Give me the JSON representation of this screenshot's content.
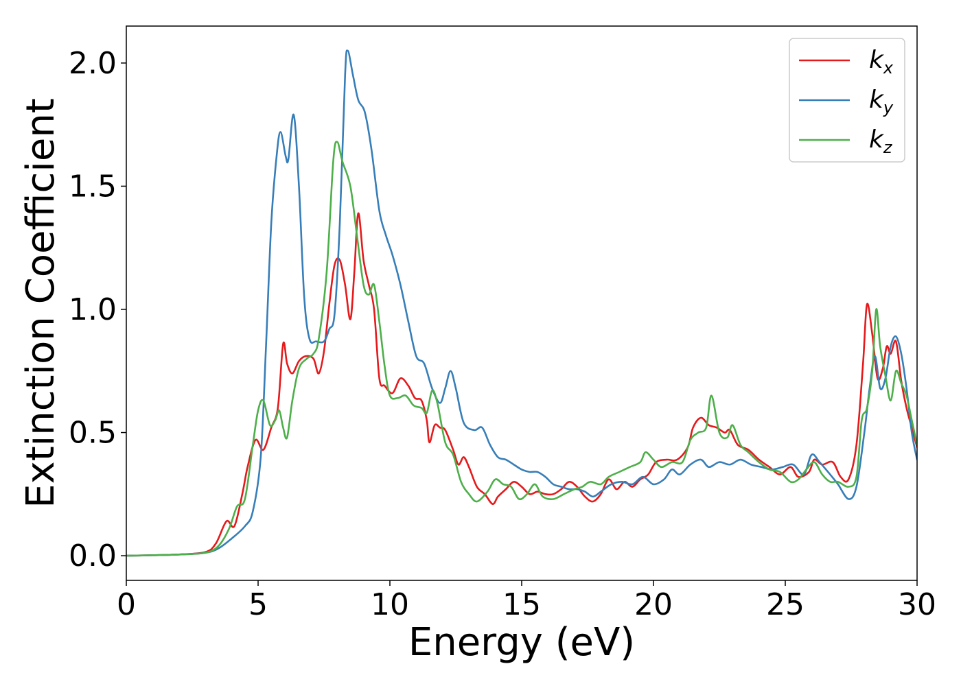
{
  "chart_data": {
    "type": "line",
    "xlabel": "Energy (eV)",
    "ylabel": "Extinction Coefficient",
    "xlim": [
      0,
      30
    ],
    "ylim": [
      -0.1,
      2.15
    ],
    "grid": false,
    "legend_position": "top-right",
    "x_ticks": [
      0,
      5,
      10,
      15,
      20,
      25,
      30
    ],
    "x_tick_labels": [
      "0",
      "5",
      "10",
      "15",
      "20",
      "25",
      "30"
    ],
    "y_ticks": [
      0.0,
      0.5,
      1.0,
      1.5,
      2.0
    ],
    "y_tick_labels": [
      "0.0",
      "0.5",
      "1.0",
      "1.5",
      "2.0"
    ],
    "series": [
      {
        "name": "k_x",
        "label_main": "k",
        "label_sub": "x",
        "color": "#e41a1c",
        "points": [
          [
            0,
            0
          ],
          [
            1,
            0.002
          ],
          [
            2,
            0.005
          ],
          [
            3,
            0.015
          ],
          [
            3.4,
            0.05
          ],
          [
            3.8,
            0.14
          ],
          [
            4.1,
            0.12
          ],
          [
            4.4,
            0.25
          ],
          [
            4.6,
            0.36
          ],
          [
            4.9,
            0.47
          ],
          [
            5.2,
            0.43
          ],
          [
            5.5,
            0.52
          ],
          [
            5.75,
            0.6
          ],
          [
            5.95,
            0.86
          ],
          [
            6.1,
            0.78
          ],
          [
            6.3,
            0.74
          ],
          [
            6.55,
            0.79
          ],
          [
            6.8,
            0.81
          ],
          [
            7.1,
            0.8
          ],
          [
            7.3,
            0.74
          ],
          [
            7.5,
            0.83
          ],
          [
            7.7,
            1.02
          ],
          [
            7.9,
            1.18
          ],
          [
            8.1,
            1.2
          ],
          [
            8.3,
            1.1
          ],
          [
            8.5,
            0.96
          ],
          [
            8.65,
            1.15
          ],
          [
            8.8,
            1.39
          ],
          [
            9.0,
            1.2
          ],
          [
            9.2,
            1.1
          ],
          [
            9.4,
            1.0
          ],
          [
            9.6,
            0.72
          ],
          [
            9.8,
            0.69
          ],
          [
            10.1,
            0.66
          ],
          [
            10.4,
            0.72
          ],
          [
            10.7,
            0.69
          ],
          [
            10.95,
            0.64
          ],
          [
            11.2,
            0.63
          ],
          [
            11.4,
            0.55
          ],
          [
            11.5,
            0.46
          ],
          [
            11.7,
            0.53
          ],
          [
            11.9,
            0.52
          ],
          [
            12.1,
            0.51
          ],
          [
            12.4,
            0.43
          ],
          [
            12.6,
            0.37
          ],
          [
            12.8,
            0.4
          ],
          [
            13.0,
            0.36
          ],
          [
            13.3,
            0.28
          ],
          [
            13.6,
            0.25
          ],
          [
            13.9,
            0.21
          ],
          [
            14.1,
            0.24
          ],
          [
            14.4,
            0.27
          ],
          [
            14.7,
            0.3
          ],
          [
            15.0,
            0.28
          ],
          [
            15.3,
            0.25
          ],
          [
            15.6,
            0.26
          ],
          [
            15.9,
            0.25
          ],
          [
            16.2,
            0.25
          ],
          [
            16.5,
            0.27
          ],
          [
            16.8,
            0.3
          ],
          [
            17.1,
            0.28
          ],
          [
            17.4,
            0.24
          ],
          [
            17.7,
            0.22
          ],
          [
            18.0,
            0.25
          ],
          [
            18.3,
            0.31
          ],
          [
            18.6,
            0.27
          ],
          [
            18.9,
            0.3
          ],
          [
            19.2,
            0.28
          ],
          [
            19.5,
            0.31
          ],
          [
            19.8,
            0.33
          ],
          [
            20.1,
            0.38
          ],
          [
            20.5,
            0.39
          ],
          [
            20.9,
            0.39
          ],
          [
            21.3,
            0.44
          ],
          [
            21.5,
            0.52
          ],
          [
            21.8,
            0.56
          ],
          [
            22.1,
            0.53
          ],
          [
            22.4,
            0.52
          ],
          [
            22.7,
            0.5
          ],
          [
            22.9,
            0.51
          ],
          [
            23.2,
            0.45
          ],
          [
            23.6,
            0.43
          ],
          [
            24.0,
            0.39
          ],
          [
            24.4,
            0.36
          ],
          [
            24.8,
            0.33
          ],
          [
            25.2,
            0.36
          ],
          [
            25.5,
            0.32
          ],
          [
            25.9,
            0.34
          ],
          [
            26.1,
            0.39
          ],
          [
            26.4,
            0.37
          ],
          [
            26.8,
            0.38
          ],
          [
            27.1,
            0.32
          ],
          [
            27.4,
            0.31
          ],
          [
            27.7,
            0.45
          ],
          [
            27.95,
            0.78
          ],
          [
            28.1,
            1.02
          ],
          [
            28.3,
            0.9
          ],
          [
            28.5,
            0.72
          ],
          [
            28.7,
            0.76
          ],
          [
            28.85,
            0.85
          ],
          [
            29.0,
            0.82
          ],
          [
            29.2,
            0.87
          ],
          [
            29.4,
            0.71
          ],
          [
            29.6,
            0.6
          ],
          [
            29.8,
            0.52
          ],
          [
            30.0,
            0.44
          ]
        ]
      },
      {
        "name": "k_y",
        "label_main": "k",
        "label_sub": "y",
        "color": "#377eb8",
        "points": [
          [
            0,
            0
          ],
          [
            1,
            0.002
          ],
          [
            2,
            0.005
          ],
          [
            3,
            0.012
          ],
          [
            3.5,
            0.03
          ],
          [
            4.0,
            0.07
          ],
          [
            4.5,
            0.12
          ],
          [
            4.8,
            0.18
          ],
          [
            5.1,
            0.4
          ],
          [
            5.3,
            0.85
          ],
          [
            5.5,
            1.35
          ],
          [
            5.7,
            1.62
          ],
          [
            5.85,
            1.72
          ],
          [
            6.05,
            1.62
          ],
          [
            6.15,
            1.61
          ],
          [
            6.35,
            1.79
          ],
          [
            6.55,
            1.5
          ],
          [
            6.75,
            1.05
          ],
          [
            6.95,
            0.88
          ],
          [
            7.2,
            0.87
          ],
          [
            7.5,
            0.87
          ],
          [
            7.7,
            0.92
          ],
          [
            7.9,
            0.98
          ],
          [
            8.1,
            1.35
          ],
          [
            8.3,
            1.95
          ],
          [
            8.4,
            2.05
          ],
          [
            8.6,
            1.95
          ],
          [
            8.8,
            1.85
          ],
          [
            9.05,
            1.8
          ],
          [
            9.3,
            1.65
          ],
          [
            9.6,
            1.4
          ],
          [
            9.85,
            1.3
          ],
          [
            10.1,
            1.22
          ],
          [
            10.4,
            1.1
          ],
          [
            10.7,
            0.95
          ],
          [
            11.0,
            0.81
          ],
          [
            11.3,
            0.78
          ],
          [
            11.6,
            0.68
          ],
          [
            11.9,
            0.62
          ],
          [
            12.1,
            0.68
          ],
          [
            12.3,
            0.75
          ],
          [
            12.5,
            0.68
          ],
          [
            12.8,
            0.54
          ],
          [
            13.2,
            0.51
          ],
          [
            13.5,
            0.52
          ],
          [
            13.8,
            0.45
          ],
          [
            14.1,
            0.4
          ],
          [
            14.4,
            0.39
          ],
          [
            14.7,
            0.37
          ],
          [
            15.0,
            0.35
          ],
          [
            15.3,
            0.34
          ],
          [
            15.6,
            0.34
          ],
          [
            15.9,
            0.32
          ],
          [
            16.2,
            0.29
          ],
          [
            16.5,
            0.28
          ],
          [
            16.8,
            0.27
          ],
          [
            17.1,
            0.27
          ],
          [
            17.4,
            0.26
          ],
          [
            17.7,
            0.24
          ],
          [
            18.0,
            0.26
          ],
          [
            18.4,
            0.29
          ],
          [
            18.8,
            0.3
          ],
          [
            19.2,
            0.29
          ],
          [
            19.6,
            0.32
          ],
          [
            20.0,
            0.29
          ],
          [
            20.4,
            0.31
          ],
          [
            20.7,
            0.35
          ],
          [
            21.0,
            0.33
          ],
          [
            21.4,
            0.37
          ],
          [
            21.8,
            0.39
          ],
          [
            22.1,
            0.36
          ],
          [
            22.5,
            0.38
          ],
          [
            22.9,
            0.37
          ],
          [
            23.3,
            0.39
          ],
          [
            23.7,
            0.37
          ],
          [
            24.1,
            0.36
          ],
          [
            24.5,
            0.35
          ],
          [
            24.9,
            0.36
          ],
          [
            25.3,
            0.37
          ],
          [
            25.7,
            0.33
          ],
          [
            26.0,
            0.41
          ],
          [
            26.3,
            0.38
          ],
          [
            26.7,
            0.33
          ],
          [
            27.0,
            0.29
          ],
          [
            27.4,
            0.23
          ],
          [
            27.7,
            0.28
          ],
          [
            28.0,
            0.5
          ],
          [
            28.2,
            0.68
          ],
          [
            28.4,
            0.81
          ],
          [
            28.6,
            0.68
          ],
          [
            28.8,
            0.72
          ],
          [
            29.0,
            0.85
          ],
          [
            29.2,
            0.89
          ],
          [
            29.4,
            0.82
          ],
          [
            29.6,
            0.68
          ],
          [
            29.8,
            0.5
          ],
          [
            30.0,
            0.39
          ]
        ]
      },
      {
        "name": "k_z",
        "label_main": "k",
        "label_sub": "z",
        "color": "#4daf4a",
        "points": [
          [
            0,
            0
          ],
          [
            1,
            0.002
          ],
          [
            2,
            0.005
          ],
          [
            3,
            0.012
          ],
          [
            3.5,
            0.04
          ],
          [
            3.9,
            0.11
          ],
          [
            4.2,
            0.2
          ],
          [
            4.5,
            0.23
          ],
          [
            4.8,
            0.45
          ],
          [
            5.0,
            0.59
          ],
          [
            5.2,
            0.63
          ],
          [
            5.45,
            0.53
          ],
          [
            5.65,
            0.55
          ],
          [
            5.8,
            0.59
          ],
          [
            5.95,
            0.52
          ],
          [
            6.1,
            0.48
          ],
          [
            6.3,
            0.63
          ],
          [
            6.55,
            0.76
          ],
          [
            6.85,
            0.8
          ],
          [
            7.1,
            0.82
          ],
          [
            7.3,
            0.88
          ],
          [
            7.6,
            1.15
          ],
          [
            7.85,
            1.6
          ],
          [
            8.0,
            1.68
          ],
          [
            8.2,
            1.6
          ],
          [
            8.5,
            1.5
          ],
          [
            8.75,
            1.3
          ],
          [
            9.0,
            1.1
          ],
          [
            9.2,
            1.06
          ],
          [
            9.4,
            1.1
          ],
          [
            9.6,
            0.95
          ],
          [
            9.8,
            0.77
          ],
          [
            10.0,
            0.65
          ],
          [
            10.3,
            0.64
          ],
          [
            10.6,
            0.65
          ],
          [
            10.9,
            0.61
          ],
          [
            11.2,
            0.6
          ],
          [
            11.4,
            0.58
          ],
          [
            11.6,
            0.67
          ],
          [
            11.8,
            0.62
          ],
          [
            12.1,
            0.46
          ],
          [
            12.4,
            0.41
          ],
          [
            12.7,
            0.3
          ],
          [
            13.0,
            0.25
          ],
          [
            13.3,
            0.22
          ],
          [
            13.7,
            0.26
          ],
          [
            14.0,
            0.31
          ],
          [
            14.3,
            0.29
          ],
          [
            14.6,
            0.28
          ],
          [
            14.9,
            0.23
          ],
          [
            15.2,
            0.25
          ],
          [
            15.5,
            0.29
          ],
          [
            15.8,
            0.24
          ],
          [
            16.2,
            0.23
          ],
          [
            16.6,
            0.25
          ],
          [
            17.0,
            0.27
          ],
          [
            17.3,
            0.28
          ],
          [
            17.6,
            0.3
          ],
          [
            18.0,
            0.29
          ],
          [
            18.3,
            0.32
          ],
          [
            18.7,
            0.34
          ],
          [
            19.1,
            0.36
          ],
          [
            19.5,
            0.38
          ],
          [
            19.7,
            0.42
          ],
          [
            20.0,
            0.39
          ],
          [
            20.3,
            0.36
          ],
          [
            20.7,
            0.38
          ],
          [
            21.1,
            0.38
          ],
          [
            21.4,
            0.47
          ],
          [
            21.7,
            0.5
          ],
          [
            22.0,
            0.52
          ],
          [
            22.2,
            0.65
          ],
          [
            22.5,
            0.5
          ],
          [
            22.8,
            0.48
          ],
          [
            23.0,
            0.53
          ],
          [
            23.3,
            0.45
          ],
          [
            23.6,
            0.42
          ],
          [
            24.0,
            0.38
          ],
          [
            24.4,
            0.35
          ],
          [
            24.8,
            0.34
          ],
          [
            25.2,
            0.3
          ],
          [
            25.5,
            0.31
          ],
          [
            25.8,
            0.35
          ],
          [
            26.1,
            0.38
          ],
          [
            26.4,
            0.33
          ],
          [
            26.7,
            0.3
          ],
          [
            27.0,
            0.3
          ],
          [
            27.4,
            0.28
          ],
          [
            27.7,
            0.32
          ],
          [
            27.9,
            0.55
          ],
          [
            28.1,
            0.6
          ],
          [
            28.3,
            0.75
          ],
          [
            28.45,
            1.0
          ],
          [
            28.6,
            0.85
          ],
          [
            28.8,
            0.73
          ],
          [
            29.0,
            0.63
          ],
          [
            29.2,
            0.75
          ],
          [
            29.4,
            0.7
          ],
          [
            29.6,
            0.65
          ],
          [
            29.8,
            0.55
          ],
          [
            30.0,
            0.45
          ]
        ]
      }
    ]
  }
}
